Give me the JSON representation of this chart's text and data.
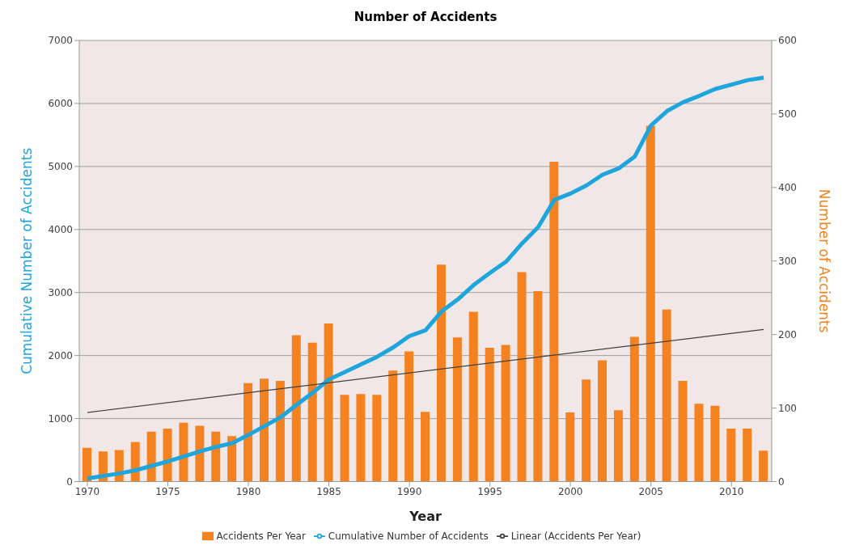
{
  "chart_data": {
    "type": "bar",
    "title": "Number of Accidents",
    "xlabel": "Year",
    "ylabel": "Cumulative Number of Accidents",
    "y2label": "Number of Accidents",
    "x": [
      1970,
      1971,
      1972,
      1973,
      1974,
      1975,
      1976,
      1977,
      1978,
      1979,
      1980,
      1981,
      1982,
      1983,
      1984,
      1985,
      1986,
      1987,
      1988,
      1989,
      1990,
      1991,
      1992,
      1993,
      1994,
      1995,
      1996,
      1997,
      1998,
      1999,
      2000,
      2001,
      2002,
      2003,
      2004,
      2005,
      2006,
      2007,
      2008,
      2009,
      2010,
      2011,
      2012
    ],
    "series": [
      {
        "name": "Accidents Per Year",
        "axis": "y2",
        "color": "#f58220",
        "values": [
          46,
          41,
          43,
          54,
          68,
          72,
          80,
          76,
          68,
          62,
          134,
          140,
          137,
          199,
          189,
          215,
          118,
          119,
          118,
          151,
          177,
          95,
          295,
          196,
          231,
          182,
          186,
          285,
          259,
          435,
          94,
          139,
          165,
          97,
          197,
          484,
          234,
          137,
          106,
          103,
          72,
          72,
          42
        ]
      },
      {
        "name": "Cumulative Number of Accidents",
        "type": "line",
        "axis": "y",
        "color": "#1ea5dc",
        "values": [
          50,
          90,
          130,
          180,
          250,
          320,
          400,
          480,
          550,
          610,
          740,
          880,
          1020,
          1220,
          1410,
          1620,
          1740,
          1860,
          1980,
          2130,
          2310,
          2400,
          2700,
          2890,
          3120,
          3310,
          3490,
          3780,
          4040,
          4470,
          4570,
          4700,
          4870,
          4970,
          5160,
          5650,
          5880,
          6020,
          6120,
          6230,
          6300,
          6370,
          6410
        ]
      },
      {
        "name": "Linear (Accidents Per Year)",
        "type": "line",
        "axis": "y2",
        "color": "#404040",
        "x": [
          1970,
          2012
        ],
        "values": [
          94,
          207
        ]
      }
    ],
    "xlim": [
      1969.5,
      2012.5
    ],
    "xticks": [
      1970,
      1975,
      1980,
      1985,
      1990,
      1995,
      2000,
      2005,
      2010
    ],
    "ylim": [
      0,
      7000
    ],
    "yticks": [
      0,
      1000,
      2000,
      3000,
      4000,
      5000,
      6000,
      7000
    ],
    "y2lim": [
      0,
      600
    ],
    "y2ticks": [
      0,
      100,
      200,
      300,
      400,
      500,
      600
    ],
    "grid": "y",
    "legend": "bottom"
  }
}
